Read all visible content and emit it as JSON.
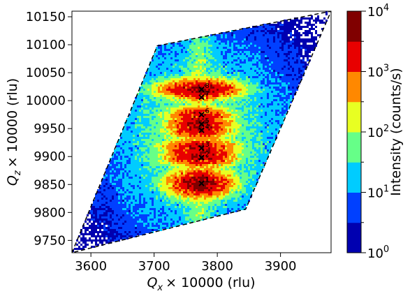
{
  "chart_data": {
    "type": "heatmap",
    "xlabel": {
      "main": "Q",
      "sub": "x",
      "rest": "× 10000 (rlu)"
    },
    "ylabel": {
      "main": "Q",
      "sub": "z",
      "rest": "× 10000 (rlu)"
    },
    "xlim": [
      3570,
      3980
    ],
    "ylim": [
      9728,
      10160
    ],
    "xticks": [
      {
        "value": 3600,
        "label": "3600"
      },
      {
        "value": 3700,
        "label": "3700"
      },
      {
        "value": 3800,
        "label": "3800"
      },
      {
        "value": 3900,
        "label": "3900"
      }
    ],
    "yticks": [
      {
        "value": 9750,
        "label": "9750"
      },
      {
        "value": 9800,
        "label": "9800"
      },
      {
        "value": 9850,
        "label": "9850"
      },
      {
        "value": 9900,
        "label": "9900"
      },
      {
        "value": 9950,
        "label": "9950"
      },
      {
        "value": 10000,
        "label": "10000"
      },
      {
        "value": 10050,
        "label": "10050"
      },
      {
        "value": 10100,
        "label": "10100"
      },
      {
        "value": 10150,
        "label": "10150"
      }
    ],
    "detector_boundary": [
      [
        3570,
        9728
      ],
      [
        3705,
        10098
      ],
      [
        3980,
        10160
      ],
      [
        3845,
        9806
      ]
    ],
    "peaks": [
      {
        "label": "1",
        "x": 3775,
        "y": 9852
      },
      {
        "label": "2",
        "x": 3775,
        "y": 9898
      },
      {
        "label": "3",
        "x": 3775,
        "y": 9915
      },
      {
        "label": "4",
        "x": 3775,
        "y": 9947
      },
      {
        "label": "5",
        "x": 3775,
        "y": 9958
      },
      {
        "label": "6",
        "x": 3775,
        "y": 9975
      },
      {
        "label": "7",
        "x": 3775,
        "y": 10006
      },
      {
        "label": "8",
        "x": 3775,
        "y": 10020
      }
    ],
    "blobs": [
      {
        "cx": 3772,
        "cy": 9852,
        "sx": 22,
        "sy": 11,
        "amp": 3.7
      },
      {
        "cx": 3772,
        "cy": 9898,
        "sx": 24,
        "sy": 7,
        "amp": 3.5
      },
      {
        "cx": 3772,
        "cy": 9916,
        "sx": 24,
        "sy": 7,
        "amp": 3.5
      },
      {
        "cx": 3772,
        "cy": 9946,
        "sx": 22,
        "sy": 6,
        "amp": 3.4
      },
      {
        "cx": 3772,
        "cy": 9959,
        "sx": 22,
        "sy": 6,
        "amp": 3.5
      },
      {
        "cx": 3772,
        "cy": 9975,
        "sx": 22,
        "sy": 6,
        "amp": 3.4
      },
      {
        "cx": 3772,
        "cy": 10020,
        "sx": 28,
        "sy": 8,
        "amp": 3.6
      }
    ],
    "colorbar": {
      "label": "Intensity (counts/s)",
      "min_exp": 0,
      "max_exp": 4,
      "levels": [
        "#0000b0",
        "#0040ff",
        "#00ccff",
        "#66ff88",
        "#e8ff22",
        "#ff8800",
        "#e80000",
        "#800000"
      ],
      "ticks": [
        {
          "exp": 0,
          "base": "10",
          "sup": "0"
        },
        {
          "exp": 1,
          "base": "10",
          "sup": "1"
        },
        {
          "exp": 2,
          "base": "10",
          "sup": "2"
        },
        {
          "exp": 3,
          "base": "10",
          "sup": "3"
        },
        {
          "exp": 4,
          "base": "10",
          "sup": "4"
        }
      ]
    },
    "grid": false,
    "legend": "none"
  }
}
